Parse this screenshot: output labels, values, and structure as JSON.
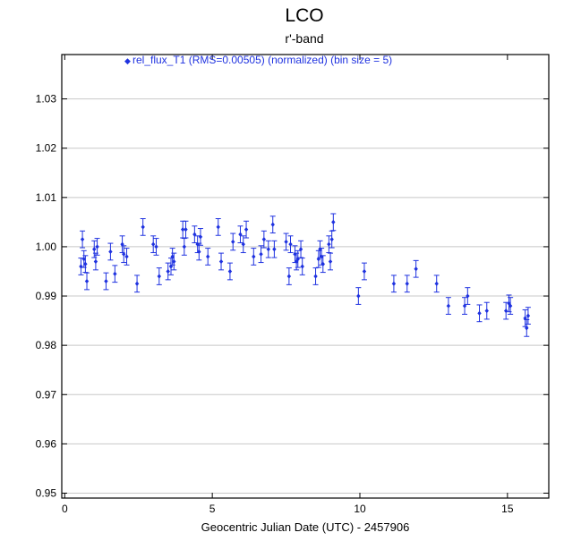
{
  "chart_data": {
    "type": "scatter",
    "title": "LCO",
    "subtitle": "r'-band",
    "xlabel": "Geocentric Julian Date (UTC) - 2457906",
    "ylabel": "",
    "xlim": [
      -0.1,
      16.4
    ],
    "ylim": [
      0.949,
      1.039
    ],
    "x_ticks": [
      0,
      5,
      10,
      15
    ],
    "x_tick_labels": [
      "0",
      "5",
      "10",
      "15"
    ],
    "y_ticks": [
      0.95,
      0.96,
      0.97,
      0.98,
      0.99,
      1.0,
      1.01,
      1.02,
      1.03
    ],
    "y_tick_labels": [
      "0.95",
      "0.96",
      "0.97",
      "0.98",
      "0.99",
      "1.00",
      "1.01",
      "1.02",
      "1.03"
    ],
    "grid": "horizontal",
    "legend_position": "top",
    "series": [
      {
        "name": "rel_flux_T1 (RMS=0.00505) (normalized) (bin size = 5)",
        "color": "#1f32e0",
        "marker": "diamond",
        "error_bar": 0.0017,
        "points": [
          [
            0.55,
            0.996
          ],
          [
            0.6,
            1.0015
          ],
          [
            0.65,
            0.9975
          ],
          [
            0.7,
            0.9965
          ],
          [
            0.75,
            0.993
          ],
          [
            1.0,
            0.9995
          ],
          [
            1.05,
            0.997
          ],
          [
            1.1,
            1.0
          ],
          [
            1.4,
            0.993
          ],
          [
            1.55,
            0.999
          ],
          [
            1.7,
            0.9945
          ],
          [
            1.95,
            1.0005
          ],
          [
            2.0,
            0.9985
          ],
          [
            2.1,
            0.998
          ],
          [
            2.45,
            0.9925
          ],
          [
            2.65,
            1.004
          ],
          [
            3.0,
            1.0005
          ],
          [
            3.1,
            1.0
          ],
          [
            3.2,
            0.994
          ],
          [
            3.5,
            0.995
          ],
          [
            3.6,
            0.996
          ],
          [
            3.65,
            0.998
          ],
          [
            3.7,
            0.997
          ],
          [
            4.0,
            1.0035
          ],
          [
            4.05,
            1.0
          ],
          [
            4.1,
            1.0035
          ],
          [
            4.4,
            1.0025
          ],
          [
            4.5,
            1.0005
          ],
          [
            4.55,
            0.999
          ],
          [
            4.6,
            1.002
          ],
          [
            4.85,
            0.998
          ],
          [
            5.2,
            1.004
          ],
          [
            5.3,
            0.997
          ],
          [
            5.6,
            0.995
          ],
          [
            5.7,
            1.001
          ],
          [
            5.95,
            1.0025
          ],
          [
            6.05,
            1.0005
          ],
          [
            6.15,
            1.0035
          ],
          [
            6.4,
            0.998
          ],
          [
            6.65,
            0.9985
          ],
          [
            6.75,
            1.0015
          ],
          [
            6.9,
            0.9995
          ],
          [
            7.05,
            1.0045
          ],
          [
            7.1,
            0.9995
          ],
          [
            7.5,
            1.001
          ],
          [
            7.6,
            0.994
          ],
          [
            7.65,
            1.0005
          ],
          [
            7.8,
            0.9985
          ],
          [
            7.85,
            0.997
          ],
          [
            7.9,
            0.9975
          ],
          [
            8.0,
            0.9995
          ],
          [
            8.05,
            0.996
          ],
          [
            8.5,
            0.994
          ],
          [
            8.6,
            0.9975
          ],
          [
            8.65,
            0.9995
          ],
          [
            8.7,
            0.998
          ],
          [
            8.75,
            0.9965
          ],
          [
            8.95,
            1.0005
          ],
          [
            9.0,
            0.997
          ],
          [
            9.05,
            1.0015
          ],
          [
            9.1,
            1.005
          ],
          [
            9.95,
            0.99
          ],
          [
            10.15,
            0.995
          ],
          [
            11.15,
            0.9925
          ],
          [
            11.6,
            0.9925
          ],
          [
            11.9,
            0.9955
          ],
          [
            12.6,
            0.9925
          ],
          [
            13.0,
            0.988
          ],
          [
            13.55,
            0.988
          ],
          [
            13.65,
            0.99
          ],
          [
            14.05,
            0.9865
          ],
          [
            14.3,
            0.987
          ],
          [
            14.95,
            0.987
          ],
          [
            15.05,
            0.9885
          ],
          [
            15.1,
            0.988
          ],
          [
            15.6,
            0.9855
          ],
          [
            15.65,
            0.9835
          ],
          [
            15.7,
            0.986
          ]
        ]
      }
    ]
  }
}
